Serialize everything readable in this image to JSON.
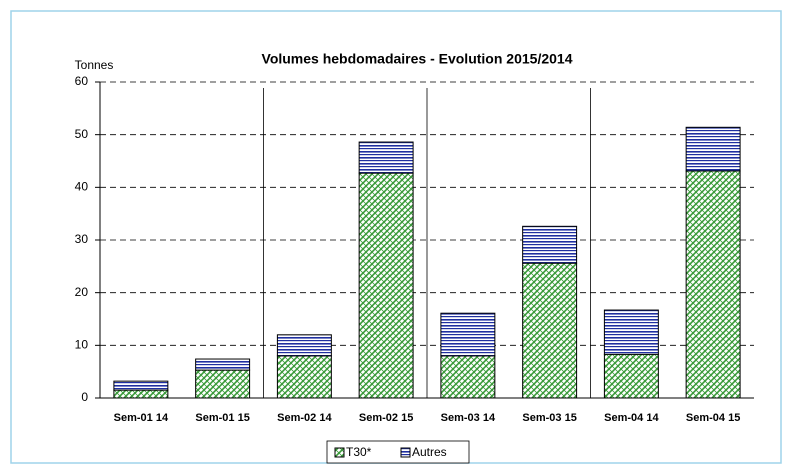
{
  "chart_data": {
    "type": "stacked_bar",
    "title": "Volumes hebdomadaires - Evolution 2015/2014",
    "ylabel": "Tonnes",
    "categories": [
      "Sem-01 14",
      "Sem-01 15",
      "Sem-02 14",
      "Sem-02 15",
      "Sem-03 14",
      "Sem-03 15",
      "Sem-04 14",
      "Sem-04 15"
    ],
    "series": [
      {
        "name": "T30*",
        "color": "#3a9a3a",
        "values": [
          1.5,
          5.3,
          8.0,
          42.7,
          8.0,
          25.6,
          8.3,
          43.1
        ]
      },
      {
        "name": "Autres",
        "color": "#1f2fa0",
        "values": [
          1.7,
          2.1,
          4.0,
          5.9,
          8.1,
          7.0,
          8.4,
          8.3
        ]
      }
    ],
    "ylim": [
      0,
      60
    ],
    "yticks": [
      0,
      10,
      20,
      30,
      40,
      50,
      60
    ],
    "grid": true,
    "legend": "bottom"
  }
}
